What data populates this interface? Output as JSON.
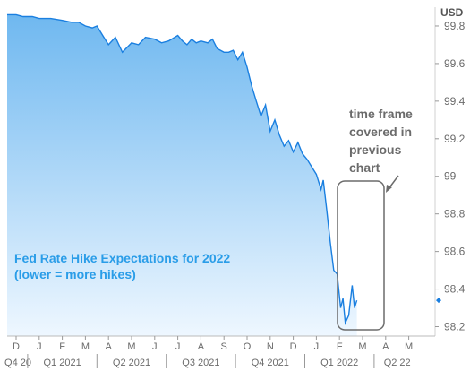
{
  "chart_data": {
    "type": "area",
    "title": "Fed Rate Hike Expectations for 2022",
    "subtitle": "(lower = more hikes)",
    "unit": "USD",
    "ylim": [
      98.15,
      99.9
    ],
    "yticks": [
      98.2,
      98.4,
      98.6,
      98.8,
      99,
      99.2,
      99.4,
      99.6,
      99.8
    ],
    "ytick_labels": [
      "98.2",
      "98.4",
      "98.6",
      "98.8",
      "99",
      "99.2",
      "99.4",
      "99.6",
      "99.8"
    ],
    "month_labels": [
      "D",
      "J",
      "F",
      "M",
      "A",
      "M",
      "J",
      "J",
      "A",
      "S",
      "O",
      "N",
      "D",
      "J",
      "F",
      "M",
      "A",
      "M"
    ],
    "quarter_labels": [
      "Q4 20",
      "Q1 2021",
      "Q2 2021",
      "Q3 2021",
      "Q4 2021",
      "Q1 2022",
      "Q2 22"
    ],
    "last_value": 98.34,
    "annotation": [
      "time frame",
      "covered in",
      "previous",
      "chart"
    ],
    "x_month_index": [
      0,
      0.3,
      0.7,
      1,
      1.5,
      2,
      2.4,
      2.7,
      3,
      3.3,
      3.5,
      3.8,
      4,
      4.3,
      4.6,
      5,
      5.3,
      5.6,
      6,
      6.3,
      6.6,
      7,
      7.2,
      7.4,
      7.6,
      7.8,
      8,
      8.3,
      8.5,
      8.7,
      9,
      9.2,
      9.4,
      9.6,
      9.8,
      10,
      10.2,
      10.4,
      10.6,
      10.8,
      11,
      11.2,
      11.4,
      11.6,
      11.8,
      12,
      12.2,
      12.4,
      12.6,
      12.8,
      13,
      13.2,
      13.3,
      13.45,
      13.6,
      13.75,
      13.9,
      14.05,
      14.15,
      14.25,
      14.4,
      14.55,
      14.65,
      14.75
    ],
    "values": [
      99.86,
      99.85,
      99.85,
      99.84,
      99.84,
      99.83,
      99.82,
      99.82,
      99.8,
      99.79,
      99.8,
      99.74,
      99.7,
      99.74,
      99.66,
      99.71,
      99.7,
      99.74,
      99.73,
      99.71,
      99.72,
      99.75,
      99.72,
      99.7,
      99.73,
      99.71,
      99.72,
      99.71,
      99.73,
      99.68,
      99.66,
      99.66,
      99.67,
      99.62,
      99.66,
      99.58,
      99.48,
      99.4,
      99.32,
      99.38,
      99.24,
      99.3,
      99.22,
      99.16,
      99.19,
      99.13,
      99.18,
      99.12,
      99.09,
      99.05,
      99.01,
      98.93,
      98.98,
      98.82,
      98.65,
      98.5,
      98.48,
      98.3,
      98.35,
      98.22,
      98.26,
      98.42,
      98.3,
      98.34
    ]
  }
}
